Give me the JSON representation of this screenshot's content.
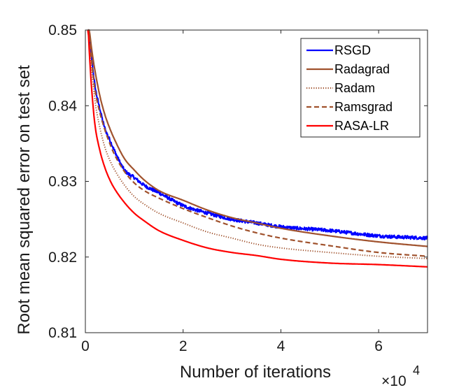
{
  "chart_data": {
    "type": "line",
    "title": "",
    "xlabel": "Number of iterations",
    "ylabel": "Root mean squared error on test set",
    "x_multiplier_label": {
      "base": "×10",
      "exp": "4"
    },
    "x_ticks": [
      0,
      2,
      4,
      6
    ],
    "x_tick_labels": [
      "0",
      "2",
      "4",
      "6"
    ],
    "y_ticks": [
      0.81,
      0.82,
      0.83,
      0.84,
      0.85
    ],
    "y_tick_labels": [
      "0.81",
      "0.82",
      "0.83",
      "0.84",
      "0.85"
    ],
    "xlim": [
      0,
      7
    ],
    "ylim": [
      0.81,
      0.85
    ],
    "grid": false,
    "legend_position": "top-right",
    "series": [
      {
        "name": "RSGD",
        "color": "#0000ff",
        "style": "solid",
        "noisy": true,
        "x": [
          0.05,
          0.1,
          0.15,
          0.2,
          0.3,
          0.4,
          0.5,
          0.6,
          0.8,
          1.0,
          1.2,
          1.5,
          2.0,
          2.5,
          3.0,
          3.5,
          4.0,
          5.0,
          6.0,
          7.0
        ],
        "y": [
          0.8515,
          0.848,
          0.845,
          0.8425,
          0.8395,
          0.837,
          0.8355,
          0.834,
          0.8315,
          0.8305,
          0.8295,
          0.8285,
          0.8268,
          0.8258,
          0.825,
          0.8245,
          0.824,
          0.8235,
          0.8228,
          0.8225
        ]
      },
      {
        "name": "Radagrad",
        "color": "#a0522d",
        "style": "solid",
        "noisy": false,
        "x": [
          0.05,
          0.1,
          0.15,
          0.2,
          0.3,
          0.4,
          0.5,
          0.6,
          0.8,
          1.0,
          1.2,
          1.5,
          2.0,
          2.5,
          3.0,
          3.5,
          4.0,
          5.0,
          6.0,
          7.0
        ],
        "y": [
          0.852,
          0.849,
          0.8465,
          0.8445,
          0.8412,
          0.8388,
          0.837,
          0.8355,
          0.833,
          0.8315,
          0.8302,
          0.8288,
          0.8275,
          0.8262,
          0.8252,
          0.8245,
          0.8238,
          0.8228,
          0.822,
          0.8214
        ]
      },
      {
        "name": "Radam",
        "color": "#a0522d",
        "style": "dotted",
        "noisy": false,
        "x": [
          0.05,
          0.1,
          0.15,
          0.2,
          0.3,
          0.4,
          0.5,
          0.6,
          0.8,
          1.0,
          1.2,
          1.5,
          2.0,
          2.5,
          3.0,
          3.5,
          4.0,
          5.0,
          6.0,
          7.0
        ],
        "y": [
          0.852,
          0.8475,
          0.8435,
          0.8405,
          0.837,
          0.8345,
          0.8328,
          0.8315,
          0.8295,
          0.828,
          0.827,
          0.8258,
          0.8245,
          0.8233,
          0.8225,
          0.8217,
          0.8212,
          0.8206,
          0.8201,
          0.8198
        ]
      },
      {
        "name": "Ramsgrad",
        "color": "#a0522d",
        "style": "dashed",
        "noisy": false,
        "x": [
          0.05,
          0.1,
          0.15,
          0.2,
          0.3,
          0.4,
          0.5,
          0.6,
          0.8,
          1.0,
          1.2,
          1.5,
          2.0,
          2.5,
          3.0,
          3.5,
          4.0,
          5.0,
          6.0,
          7.0
        ],
        "y": [
          0.852,
          0.848,
          0.8445,
          0.842,
          0.839,
          0.8368,
          0.835,
          0.8335,
          0.8313,
          0.8298,
          0.8288,
          0.8278,
          0.8264,
          0.8252,
          0.8241,
          0.8232,
          0.8225,
          0.8215,
          0.8206,
          0.8201
        ]
      },
      {
        "name": "RASA-LR",
        "color": "#ff0000",
        "style": "solid",
        "noisy": false,
        "x": [
          0.05,
          0.1,
          0.15,
          0.2,
          0.3,
          0.4,
          0.5,
          0.6,
          0.8,
          1.0,
          1.2,
          1.5,
          2.0,
          2.5,
          3.0,
          3.5,
          4.0,
          5.0,
          6.0,
          7.0
        ],
        "y": [
          0.851,
          0.845,
          0.8405,
          0.8373,
          0.834,
          0.8318,
          0.8302,
          0.829,
          0.8272,
          0.8258,
          0.8248,
          0.8235,
          0.8222,
          0.8212,
          0.8206,
          0.8202,
          0.8197,
          0.8192,
          0.819,
          0.8187
        ]
      }
    ]
  }
}
